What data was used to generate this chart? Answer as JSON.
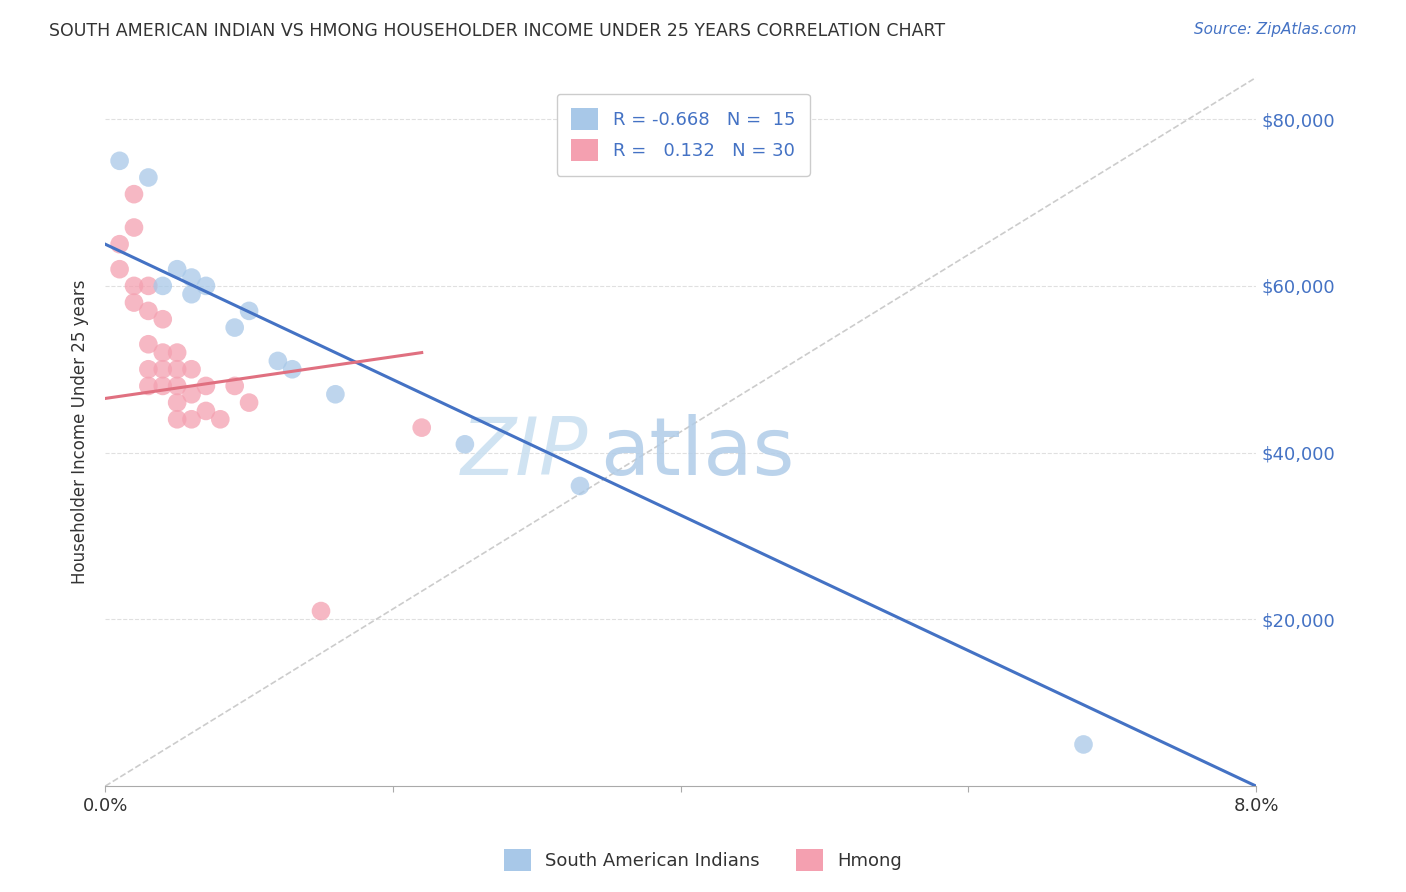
{
  "title": "SOUTH AMERICAN INDIAN VS HMONG HOUSEHOLDER INCOME UNDER 25 YEARS CORRELATION CHART",
  "source": "Source: ZipAtlas.com",
  "ylabel": "Householder Income Under 25 years",
  "xlim": [
    0.0,
    0.08
  ],
  "ylim": [
    0,
    85000
  ],
  "yticks": [
    20000,
    40000,
    60000,
    80000
  ],
  "ytick_labels": [
    "$20,000",
    "$40,000",
    "$60,000",
    "$80,000"
  ],
  "blue_R": "-0.668",
  "blue_N": "15",
  "pink_R": "0.132",
  "pink_N": "30",
  "blue_color": "#a8c8e8",
  "pink_color": "#f4a0b0",
  "blue_line_color": "#4472c4",
  "pink_line_color": "#e07080",
  "diagonal_color": "#cccccc",
  "legend_label_blue": "South American Indians",
  "legend_label_pink": "Hmong",
  "blue_scatter_x": [
    0.001,
    0.003,
    0.004,
    0.005,
    0.006,
    0.006,
    0.007,
    0.009,
    0.01,
    0.012,
    0.013,
    0.016,
    0.025,
    0.033,
    0.068
  ],
  "blue_scatter_y": [
    75000,
    73000,
    60000,
    62000,
    61000,
    59000,
    60000,
    55000,
    57000,
    51000,
    50000,
    47000,
    41000,
    36000,
    5000
  ],
  "pink_scatter_x": [
    0.001,
    0.001,
    0.002,
    0.002,
    0.002,
    0.002,
    0.003,
    0.003,
    0.003,
    0.003,
    0.003,
    0.004,
    0.004,
    0.004,
    0.004,
    0.005,
    0.005,
    0.005,
    0.005,
    0.005,
    0.006,
    0.006,
    0.006,
    0.007,
    0.007,
    0.008,
    0.009,
    0.01,
    0.015,
    0.022
  ],
  "pink_scatter_y": [
    65000,
    62000,
    71000,
    67000,
    60000,
    58000,
    60000,
    57000,
    53000,
    50000,
    48000,
    56000,
    52000,
    50000,
    48000,
    52000,
    50000,
    48000,
    46000,
    44000,
    50000,
    47000,
    44000,
    48000,
    45000,
    44000,
    48000,
    46000,
    21000,
    43000
  ],
  "watermark_zip": "ZIP",
  "watermark_atlas": "atlas",
  "background_color": "#ffffff",
  "grid_color": "#e0e0e0",
  "blue_line_x0": 0.0,
  "blue_line_y0": 65000,
  "blue_line_x1": 0.08,
  "blue_line_y1": 0,
  "pink_line_x0": 0.0,
  "pink_line_y0": 46500,
  "pink_line_x1": 0.022,
  "pink_line_y1": 52000
}
